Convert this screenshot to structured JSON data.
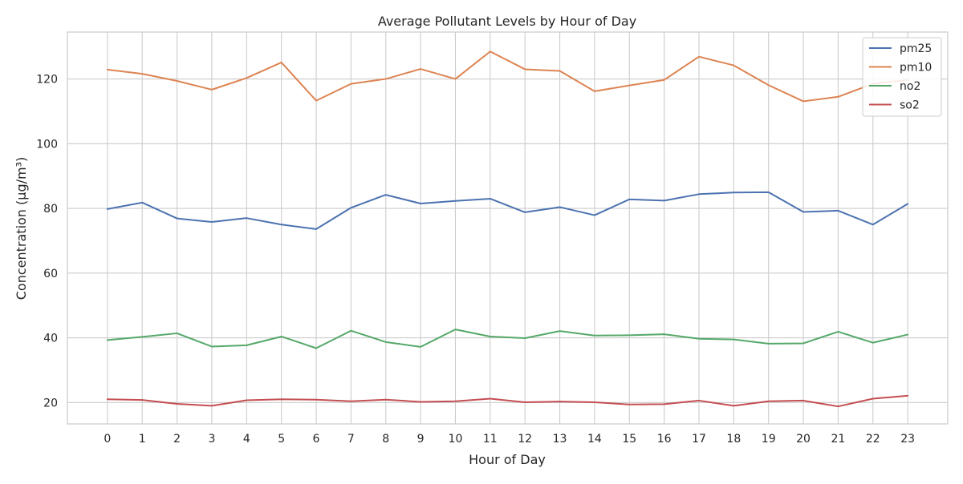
{
  "chart_data": {
    "type": "line",
    "title": "Average Pollutant Levels by Hour of Day",
    "xlabel": "Hour of Day",
    "ylabel": "Concentration (µg/m³)",
    "x": [
      0,
      1,
      2,
      3,
      4,
      5,
      6,
      7,
      8,
      9,
      10,
      11,
      12,
      13,
      14,
      15,
      16,
      17,
      18,
      19,
      20,
      21,
      22,
      23
    ],
    "xlim": [
      -1.15,
      24.15
    ],
    "ylim": [
      13.4,
      134.5
    ],
    "yticks": [
      20,
      40,
      60,
      80,
      100,
      120
    ],
    "grid": true,
    "legend_position": "top-right",
    "series": [
      {
        "name": "pm25",
        "color": "#4c72b0",
        "values": [
          79.8,
          81.8,
          76.9,
          75.8,
          77.0,
          75.0,
          73.6,
          80.2,
          84.2,
          81.5,
          82.3,
          83.0,
          78.8,
          80.4,
          77.9,
          82.8,
          82.4,
          84.4,
          84.9,
          85.0,
          78.9,
          79.3,
          75.0,
          81.4
        ]
      },
      {
        "name": "pm10",
        "color": "#dd8452",
        "values": [
          122.9,
          121.6,
          119.4,
          116.7,
          120.3,
          125.1,
          113.3,
          118.5,
          120.0,
          123.1,
          120.0,
          128.5,
          123.0,
          122.5,
          116.2,
          118.0,
          119.7,
          126.9,
          124.2,
          118.1,
          113.1,
          114.5,
          118.5,
          119.7
        ]
      },
      {
        "name": "no2",
        "color": "#55a868",
        "values": [
          39.3,
          40.3,
          41.4,
          37.3,
          37.7,
          40.4,
          36.8,
          42.2,
          38.7,
          37.2,
          42.6,
          40.4,
          39.9,
          42.1,
          40.7,
          40.8,
          41.1,
          39.7,
          39.5,
          38.2,
          38.3,
          41.9,
          38.5,
          41.0
        ]
      },
      {
        "name": "so2",
        "color": "#c44e52",
        "values": [
          21.0,
          20.8,
          19.6,
          19.0,
          20.7,
          21.0,
          20.9,
          20.4,
          20.9,
          20.2,
          20.4,
          21.2,
          20.1,
          20.3,
          20.1,
          19.4,
          19.5,
          20.6,
          19.0,
          20.4,
          20.6,
          18.8,
          21.2,
          22.1
        ]
      }
    ]
  }
}
